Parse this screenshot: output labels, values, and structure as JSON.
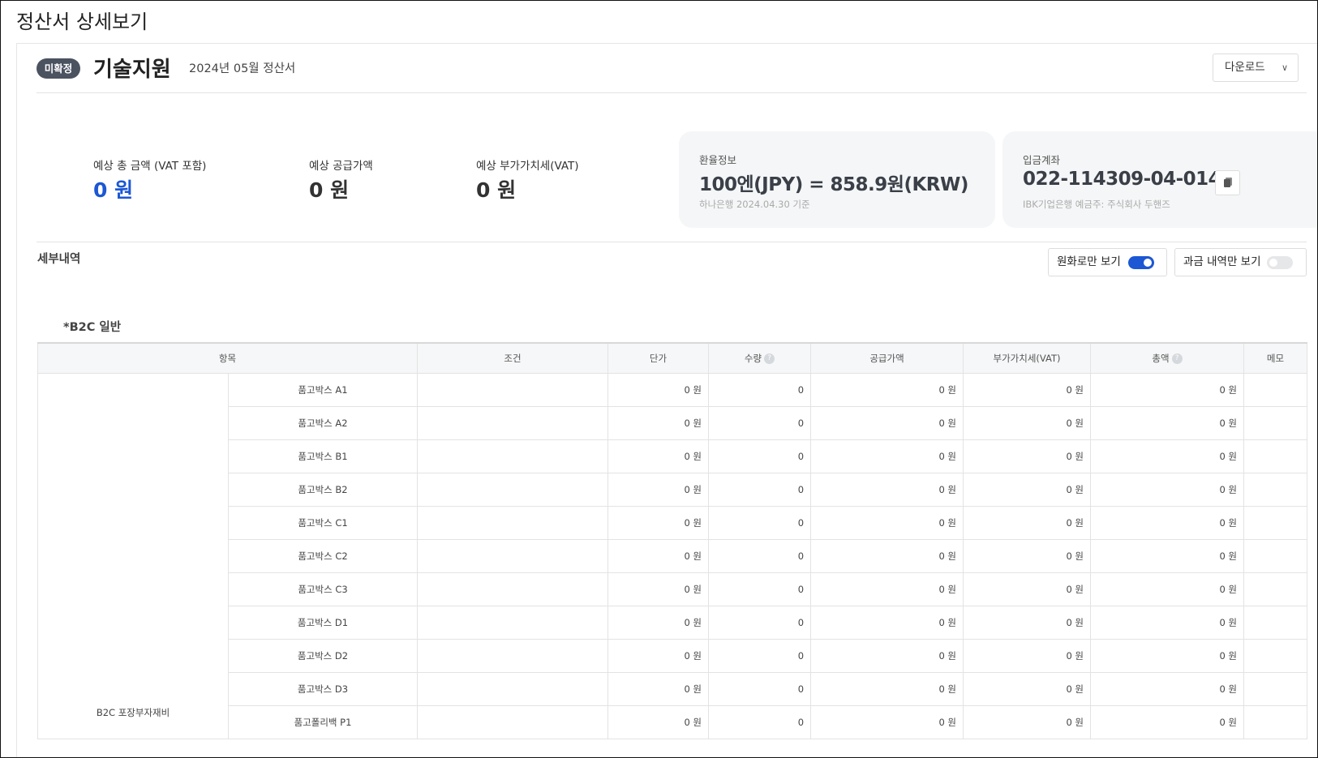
{
  "page_title": "정산서 상세보기",
  "header": {
    "status_badge": "미확정",
    "name": "기술지원",
    "subtitle": "2024년 05월 정산서",
    "download_label": "다운로드"
  },
  "summary": [
    {
      "label": "예상 총 금액 (VAT 포함)",
      "value": "0 원"
    },
    {
      "label": "예상 공급가액",
      "value": "0 원"
    },
    {
      "label": "예상 부가가치세(VAT)",
      "value": "0 원"
    }
  ],
  "exchange": {
    "title": "환율정보",
    "rate": "100엔(JPY) = 858.9원(KRW)",
    "note": "하나은행 2024.04.30 기준"
  },
  "account": {
    "title": "입금계좌",
    "number": "022-114309-04-014",
    "note": "IBK기업은행 예금주: 주식회사 두핸즈"
  },
  "details": {
    "title": "세부내역",
    "toggle_krw": {
      "label": "원화로만 보기",
      "on": true
    },
    "toggle_billed": {
      "label": "과금 내역만 보기",
      "on": false
    }
  },
  "colors": {
    "accent": "#1c57d4",
    "badge": "#4b5260"
  },
  "table": {
    "section": "*B2C 일반",
    "headers": [
      "항목",
      "조건",
      "단가",
      "수량",
      "공급가액",
      "부가가치세(VAT)",
      "총액",
      "메모"
    ],
    "group": "B2C 포장부자재비",
    "rows": [
      {
        "item": "품고박스 A1",
        "unit": "0 원",
        "qty": "0",
        "supply": "0 원",
        "vat": "0 원",
        "total": "0 원"
      },
      {
        "item": "품고박스 A2",
        "unit": "0 원",
        "qty": "0",
        "supply": "0 원",
        "vat": "0 원",
        "total": "0 원"
      },
      {
        "item": "품고박스 B1",
        "unit": "0 원",
        "qty": "0",
        "supply": "0 원",
        "vat": "0 원",
        "total": "0 원"
      },
      {
        "item": "품고박스 B2",
        "unit": "0 원",
        "qty": "0",
        "supply": "0 원",
        "vat": "0 원",
        "total": "0 원"
      },
      {
        "item": "품고박스 C1",
        "unit": "0 원",
        "qty": "0",
        "supply": "0 원",
        "vat": "0 원",
        "total": "0 원"
      },
      {
        "item": "품고박스 C2",
        "unit": "0 원",
        "qty": "0",
        "supply": "0 원",
        "vat": "0 원",
        "total": "0 원"
      },
      {
        "item": "품고박스 C3",
        "unit": "0 원",
        "qty": "0",
        "supply": "0 원",
        "vat": "0 원",
        "total": "0 원"
      },
      {
        "item": "품고박스 D1",
        "unit": "0 원",
        "qty": "0",
        "supply": "0 원",
        "vat": "0 원",
        "total": "0 원"
      },
      {
        "item": "품고박스 D2",
        "unit": "0 원",
        "qty": "0",
        "supply": "0 원",
        "vat": "0 원",
        "total": "0 원"
      },
      {
        "item": "품고박스 D3",
        "unit": "0 원",
        "qty": "0",
        "supply": "0 원",
        "vat": "0 원",
        "total": "0 원"
      },
      {
        "item": "품고폴리백 P1",
        "unit": "0 원",
        "qty": "0",
        "supply": "0 원",
        "vat": "0 원",
        "total": "0 원"
      }
    ]
  }
}
